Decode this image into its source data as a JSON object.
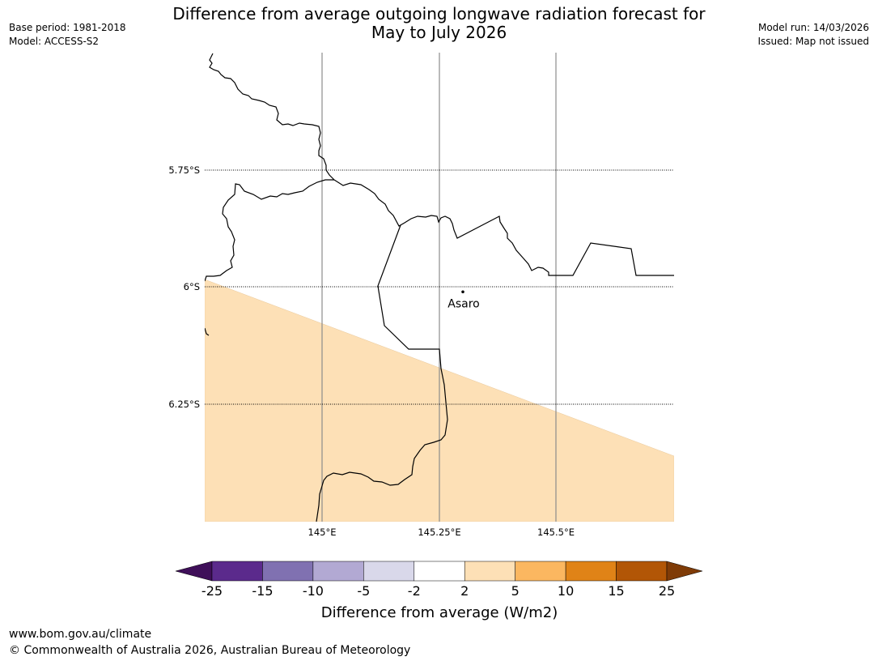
{
  "title": {
    "line1": "Difference from average outgoing longwave radiation forecast for",
    "line2": "May to July 2026"
  },
  "meta_left": {
    "base_period": "Base period: 1981-2018",
    "model": "Model: ACCESS-S2"
  },
  "meta_right": {
    "model_run": "Model run: 14/03/2026",
    "issued": "Issued: Map not issued"
  },
  "map": {
    "lat_labels": [
      "5.75°S",
      "6°S",
      "6.25°S"
    ],
    "lon_labels": [
      "145°E",
      "145.25°E",
      "145.5°E"
    ],
    "place": {
      "name": "Asaro",
      "lon": 145.3,
      "lat": -6.01
    },
    "anomaly_fill_color": "#fde0b6",
    "anomaly_class": "2 to 5"
  },
  "colorbar": {
    "title": "Difference from average (W/m2)",
    "ticks": [
      "-25",
      "-15",
      "-10",
      "-5",
      "-2",
      "2",
      "5",
      "10",
      "15",
      "25"
    ],
    "colors": [
      "#3f0f59",
      "#5b2a8c",
      "#8071b1",
      "#b2a9d3",
      "#d9d8ea",
      "#ffffff",
      "#fde0b6",
      "#fbb760",
      "#e08317",
      "#b25606",
      "#7f3b07"
    ]
  },
  "footer": {
    "url": "www.bom.gov.au/climate",
    "copyright": "© Commonwealth of Australia 2026, Australian Bureau of Meteorology"
  }
}
